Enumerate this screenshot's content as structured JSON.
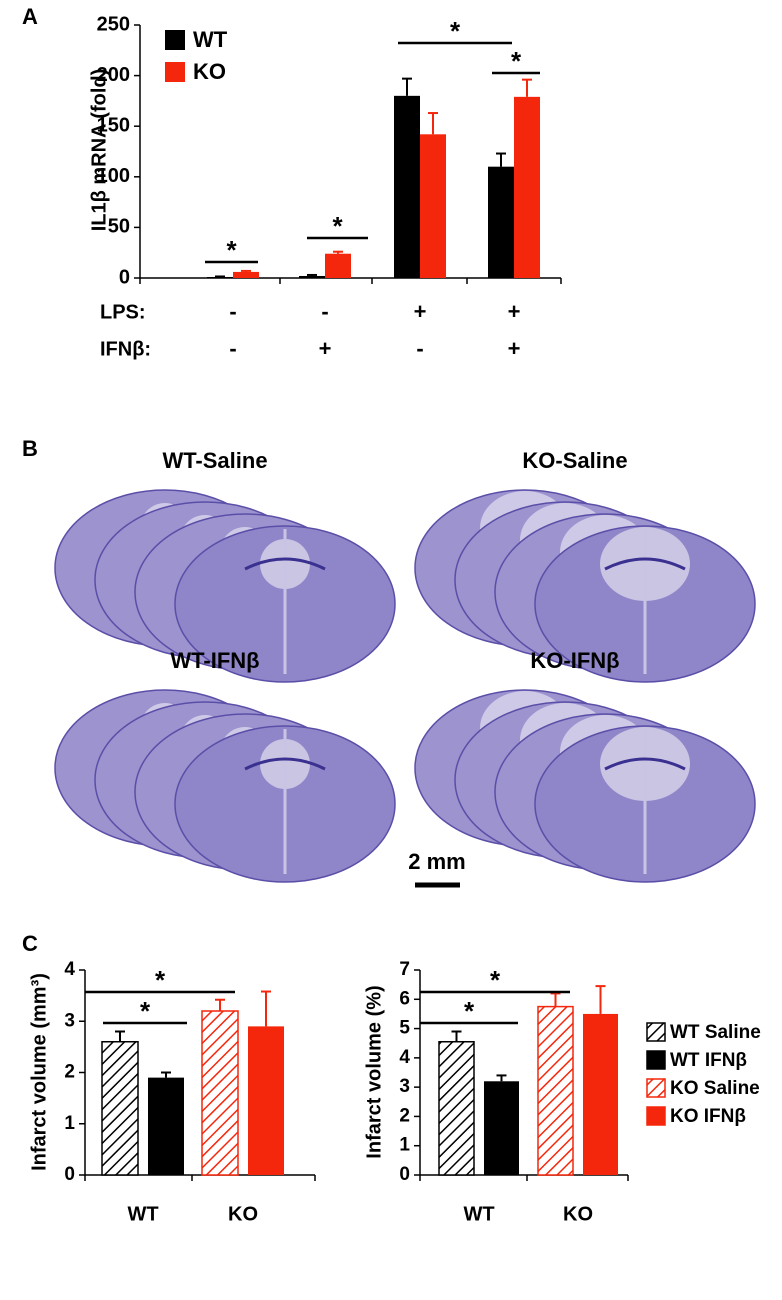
{
  "panel_labels": [
    "A",
    "B",
    "C"
  ],
  "images": {
    "labels": [
      "WT-Saline",
      "KO-Saline",
      "WT-IFNβ",
      "KO-IFNβ"
    ],
    "scale_bar": "2 mm"
  },
  "chart_data": [
    {
      "type": "bar",
      "ylabel": "IL1β mRNA (fold)",
      "categories": [
        null,
        null,
        null,
        null
      ],
      "conditions": [
        {
          "label": "LPS:",
          "values": [
            "-",
            "-",
            "+",
            "+"
          ]
        },
        {
          "label": "IFNβ:",
          "values": [
            "-",
            "+",
            "-",
            "+"
          ]
        }
      ],
      "series": [
        {
          "name": "WT",
          "color": "#000000",
          "values": [
            1,
            2,
            180,
            110
          ],
          "errors": [
            0.5,
            1,
            17,
            13
          ]
        },
        {
          "name": "KO",
          "color": "#f4270c",
          "values": [
            6,
            24,
            142,
            179
          ],
          "errors": [
            1,
            2,
            21,
            17
          ]
        }
      ],
      "ylim": [
        0,
        250
      ],
      "yticks": [
        0,
        50,
        100,
        150,
        200,
        250
      ],
      "annotations": [
        "*",
        "*",
        "*",
        "*"
      ]
    },
    {
      "type": "bar",
      "ylabel": "Infarct volume (mm³)",
      "categories": [
        "WT",
        "KO"
      ],
      "series": [
        {
          "color": "#000000",
          "hatch": true,
          "values": [
            2.6,
            null
          ],
          "errors": [
            0.2,
            null
          ]
        },
        {
          "color": "#000000",
          "hatch": false,
          "values": [
            1.9,
            null
          ],
          "errors": [
            0.1,
            null
          ]
        },
        {
          "color": "#f4270c",
          "hatch": true,
          "values": [
            null,
            3.2
          ],
          "errors": [
            null,
            0.22
          ]
        },
        {
          "color": "#f4270c",
          "hatch": false,
          "values": [
            null,
            2.9
          ],
          "errors": [
            null,
            0.68
          ]
        }
      ],
      "ylim": [
        0,
        4
      ],
      "yticks": [
        0,
        1,
        2,
        3,
        4
      ],
      "annotations": [
        "*",
        "*"
      ]
    },
    {
      "type": "bar",
      "ylabel": "Infarct volume (%)",
      "categories": [
        "WT",
        "KO"
      ],
      "series": [
        {
          "name": "WT Saline",
          "color": "#000000",
          "hatch": true,
          "values": [
            4.55,
            null
          ],
          "errors": [
            0.35,
            null
          ]
        },
        {
          "name": "WT IFNβ",
          "color": "#000000",
          "hatch": false,
          "values": [
            3.2,
            null
          ],
          "errors": [
            0.2,
            null
          ]
        },
        {
          "name": "KO Saline",
          "color": "#f4270c",
          "hatch": true,
          "values": [
            null,
            5.75
          ],
          "errors": [
            null,
            0.45
          ]
        },
        {
          "name": "KO IFNβ",
          "color": "#f4270c",
          "hatch": false,
          "values": [
            null,
            5.5
          ],
          "errors": [
            null,
            0.95
          ]
        }
      ],
      "ylim": [
        0,
        7
      ],
      "yticks": [
        0,
        1,
        2,
        3,
        4,
        5,
        6,
        7
      ],
      "annotations": [
        "*",
        "*"
      ]
    }
  ]
}
